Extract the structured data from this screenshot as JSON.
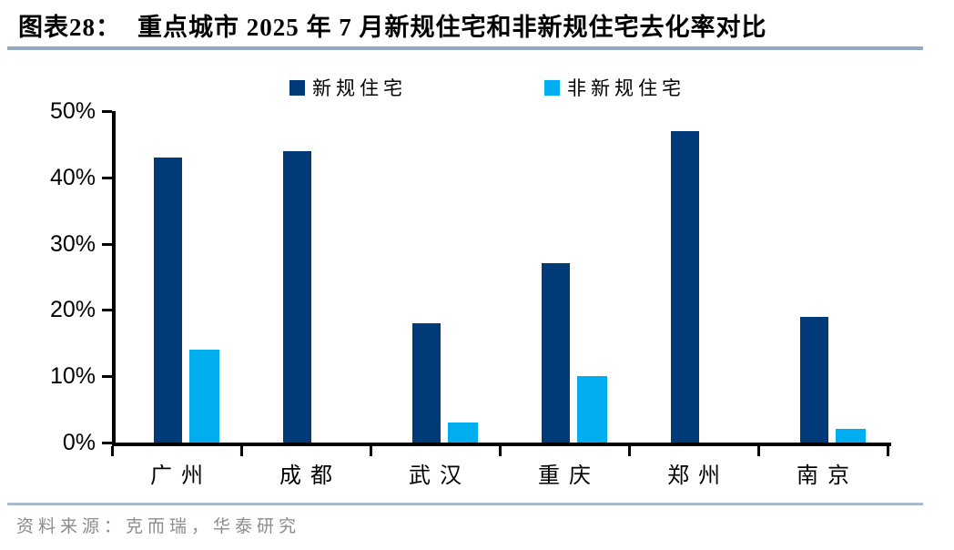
{
  "header": {
    "figure_label": "图表28：",
    "title": "重点城市 2025 年 7 月新规住宅和非新规住宅去化率对比"
  },
  "chart_data": {
    "type": "bar",
    "title": "重点城市 2025 年 7 月新规住宅和非新规住宅去化率对比",
    "categories": [
      "广州",
      "成都",
      "武汉",
      "重庆",
      "郑州",
      "南京"
    ],
    "series": [
      {
        "name": "新规住宅",
        "color": "#003A78",
        "values": [
          43,
          44,
          18,
          27,
          47,
          19
        ]
      },
      {
        "name": "非新规住宅",
        "color": "#00AEEF",
        "values": [
          14,
          0,
          3,
          10,
          0,
          2
        ]
      }
    ],
    "xlabel": "",
    "ylabel": "",
    "ylim": [
      0,
      50
    ],
    "yticks": [
      0,
      10,
      20,
      30,
      40,
      50
    ],
    "ytick_suffix": "%",
    "grid": false,
    "legend_position": "top"
  },
  "footer": {
    "source_label": "资料来源：",
    "source_text": "克而瑞，华泰研究"
  }
}
